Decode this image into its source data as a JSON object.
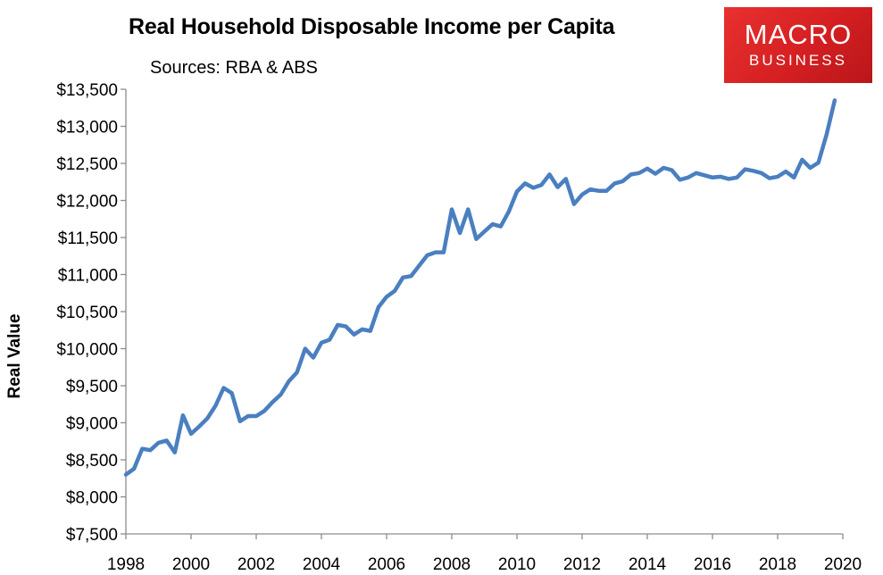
{
  "colors": {
    "line": "#4a7fc0",
    "axis": "#8c8c8c",
    "logo_bg": "#d8262a"
  },
  "logo": {
    "line1": "MACRO",
    "line2": "BUSINESS"
  },
  "chart_data": {
    "type": "line",
    "title": "Real Household Disposable Income per Capita",
    "subtitle": "Sources: RBA & ABS",
    "xlabel": "",
    "ylabel": "Real Value",
    "xlim": [
      1998,
      2020
    ],
    "ylim": [
      7500,
      13500
    ],
    "x_ticks": [
      1998,
      2000,
      2002,
      2004,
      2006,
      2008,
      2010,
      2012,
      2014,
      2016,
      2018,
      2020
    ],
    "y_ticks": [
      7500,
      8000,
      8500,
      9000,
      9500,
      10000,
      10500,
      11000,
      11500,
      12000,
      12500,
      13000,
      13500
    ],
    "y_tick_labels": [
      "$7,500",
      "$8,000",
      "$8,500",
      "$9,000",
      "$9,500",
      "$10,000",
      "$10,500",
      "$11,000",
      "$11,500",
      "$12,000",
      "$12,500",
      "$13,000",
      "$13,500"
    ],
    "grid": false,
    "series": [
      {
        "x": [
          1998.0,
          1998.25,
          1998.5,
          1998.75,
          1999.0,
          1999.25,
          1999.5,
          1999.75,
          2000.0,
          2000.25,
          2000.5,
          2000.75,
          2001.0,
          2001.25,
          2001.5,
          2001.75,
          2002.0,
          2002.25,
          2002.5,
          2002.75,
          2003.0,
          2003.25,
          2003.5,
          2003.75,
          2004.0,
          2004.25,
          2004.5,
          2004.75,
          2005.0,
          2005.25,
          2005.5,
          2005.75,
          2006.0,
          2006.25,
          2006.5,
          2006.75,
          2007.0,
          2007.25,
          2007.5,
          2007.75,
          2008.0,
          2008.25,
          2008.5,
          2008.75,
          2009.0,
          2009.25,
          2009.5,
          2009.75,
          2010.0,
          2010.25,
          2010.5,
          2010.75,
          2011.0,
          2011.25,
          2011.5,
          2011.75,
          2012.0,
          2012.25,
          2012.5,
          2012.75,
          2013.0,
          2013.25,
          2013.5,
          2013.75,
          2014.0,
          2014.25,
          2014.5,
          2014.75,
          2015.0,
          2015.25,
          2015.5,
          2015.75,
          2016.0,
          2016.25,
          2016.5,
          2016.75,
          2017.0,
          2017.25,
          2017.5,
          2017.75,
          2018.0,
          2018.25,
          2018.5,
          2018.75,
          2019.0,
          2019.25,
          2019.5,
          2019.75
        ],
        "values": [
          8300,
          8380,
          8650,
          8630,
          8730,
          8760,
          8600,
          9100,
          8850,
          8950,
          9060,
          9230,
          9470,
          9400,
          9020,
          9090,
          9090,
          9160,
          9280,
          9380,
          9560,
          9680,
          10000,
          9880,
          10080,
          10120,
          10320,
          10300,
          10190,
          10260,
          10240,
          10560,
          10700,
          10780,
          10960,
          10980,
          11120,
          11260,
          11300,
          11300,
          11880,
          11560,
          11880,
          11480,
          11580,
          11680,
          11650,
          11850,
          12120,
          12230,
          12170,
          12210,
          12350,
          12180,
          12290,
          11950,
          12080,
          12150,
          12130,
          12130,
          12230,
          12260,
          12350,
          12370,
          12430,
          12360,
          12440,
          12410,
          12280,
          12310,
          12370,
          12340,
          12310,
          12320,
          12290,
          12310,
          12420,
          12400,
          12370,
          12300,
          12320,
          12390,
          12310,
          12550,
          12440,
          12510,
          12890,
          13350
        ]
      }
    ]
  }
}
